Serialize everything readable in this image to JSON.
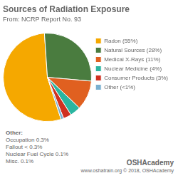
{
  "chart_data": {
    "type": "pie",
    "title": "Sources of Radiation Exposure",
    "subtitle": "From: NCRP Report No. 93",
    "categories": [
      "Radon (55%)",
      "Natural Sources (28%)",
      "Medical X-Rays (11%)",
      "Nuclear Medicine (4%)",
      "Consumer Products (3%)",
      "Other (<1%)"
    ],
    "values": [
      55,
      28,
      11,
      4,
      3,
      1
    ],
    "colors": [
      "#f5a800",
      "#4a7c3f",
      "#e06020",
      "#2ab5a0",
      "#d03020",
      "#7ab0d0"
    ],
    "legend": "right",
    "annotation": {
      "title": "Other:",
      "lines": [
        "Occupation 0.3%",
        "Fallout < 0.3%",
        "Nuclear Fuel Cycle 0.1%",
        "Misc. 0.1%"
      ]
    },
    "footer": "OSHAcademy",
    "footer_subtext": "www.oshatrain.org © 2018, OSHAcademy"
  }
}
